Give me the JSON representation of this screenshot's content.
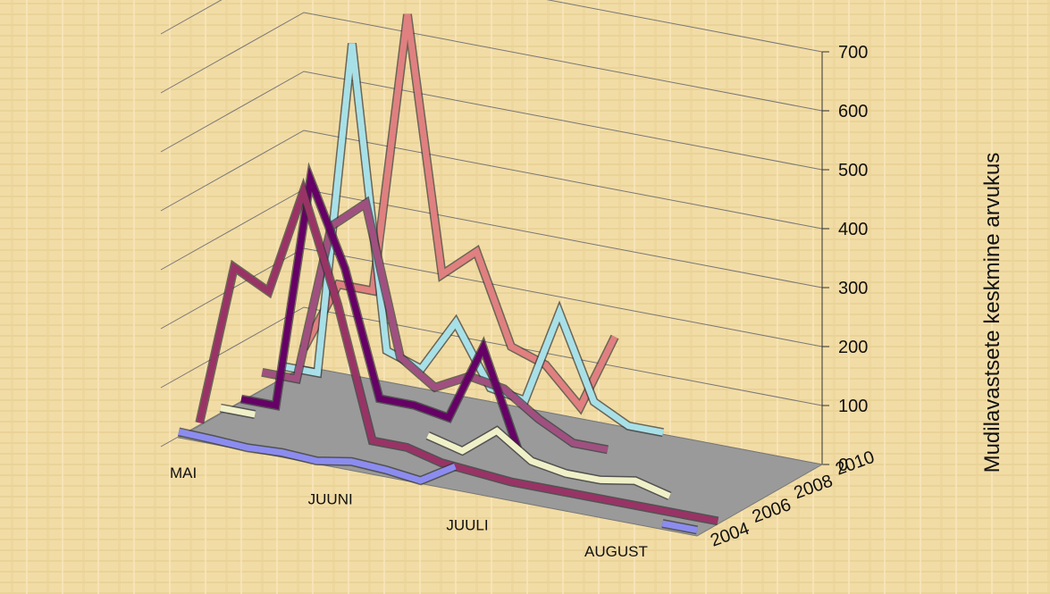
{
  "chart_data": {
    "type": "line3d",
    "y_label": "Mudilavastsete keskmine arvukus",
    "categories": [
      "MAI",
      null,
      null,
      null,
      "JUUNI",
      null,
      null,
      null,
      "JUULI",
      null,
      null,
      null,
      "AUGUST",
      null,
      null,
      null
    ],
    "ylim": [
      0,
      700
    ],
    "yticks": [
      0,
      100,
      200,
      300,
      400,
      500,
      600,
      700
    ],
    "grid": true,
    "series": [
      {
        "name": "2004",
        "color": "#8c8cf0",
        "values": [
          10,
          8,
          5,
          8,
          5,
          15,
          12,
          5,
          40,
          null,
          null,
          null,
          null,
          null,
          10,
          10
        ]
      },
      {
        "name": null,
        "color": "#993366",
        "values": [
          5,
          280,
          250,
          430,
          250,
          30,
          30,
          15,
          10,
          5,
          5,
          5,
          5,
          5,
          5,
          5
        ]
      },
      {
        "name": "2006",
        "color": "#f0f0c8",
        "values": [
          10,
          10,
          null,
          null,
          null,
          null,
          30,
          15,
          60,
          20,
          10,
          10,
          20,
          5,
          null,
          null
        ]
      },
      {
        "name": null,
        "color": "#660066",
        "values": [
          5,
          5,
          400,
          260,
          50,
          50,
          40,
          170,
          10,
          null,
          null,
          null,
          null,
          null,
          null,
          null
        ]
      },
      {
        "name": "2008",
        "color": "#a05080",
        "values": [
          30,
          30,
          300,
          350,
          100,
          60,
          90,
          80,
          40,
          10,
          10,
          null,
          null,
          null,
          null,
          null
        ]
      },
      {
        "name": null,
        "color": "#a8e0e8",
        "values": [
          20,
          20,
          590,
          80,
          60,
          150,
          50,
          40,
          200,
          60,
          30,
          30,
          null,
          null,
          null,
          null
        ]
      },
      {
        "name": "2010",
        "color": "#e08080",
        "values": [
          30,
          150,
          150,
          630,
          200,
          250,
          100,
          80,
          20,
          150,
          null,
          null,
          null,
          null,
          null,
          null
        ]
      }
    ]
  }
}
